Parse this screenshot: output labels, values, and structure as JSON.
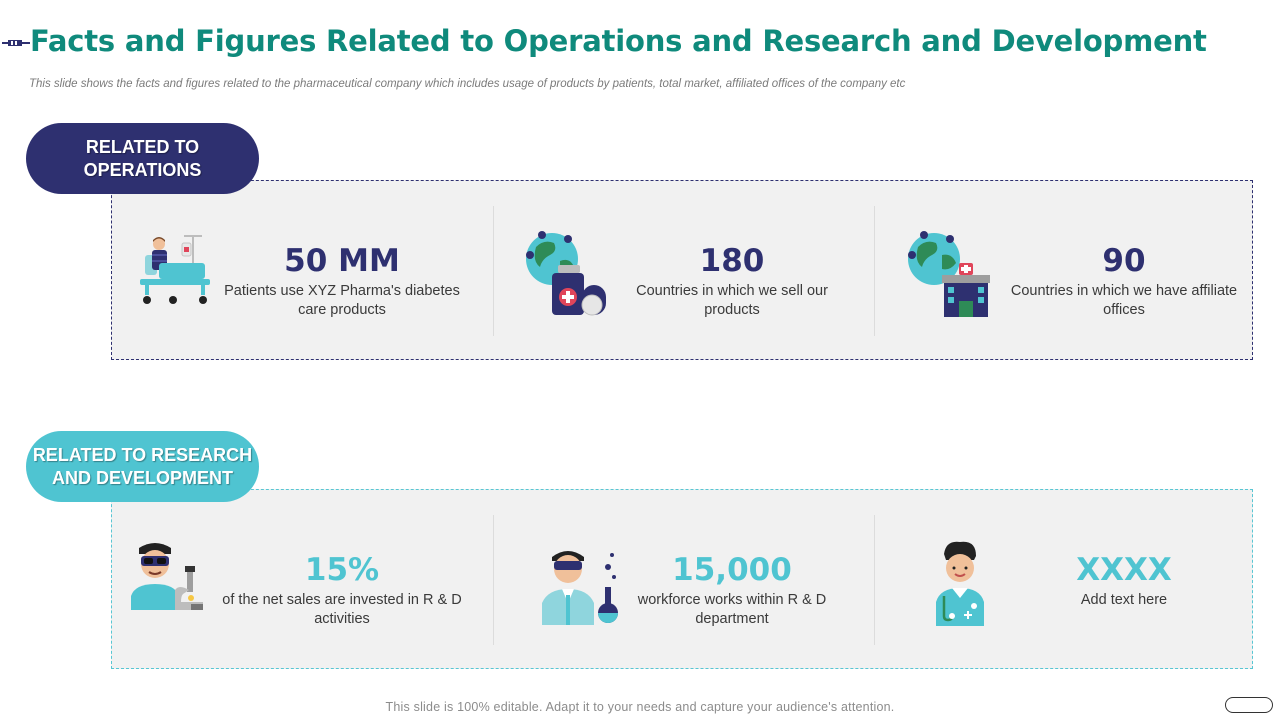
{
  "header": {
    "title": "Facts and Figures Related to Operations and Research and Development",
    "subtitle": "This slide shows the facts and figures related to the pharmaceutical company which includes usage of products by patients, total market, affiliated offices of the company etc"
  },
  "operations": {
    "label": "RELATED TO OPERATIONS",
    "color": "#2e3070",
    "stats": [
      {
        "value": "50 MM",
        "description": "Patients use XYZ Pharma's diabetes care products",
        "icon": "patient-bed-icon"
      },
      {
        "value": "180",
        "description": "Countries in which we sell our products",
        "icon": "globe-medicine-icon"
      },
      {
        "value": "90",
        "description": "Countries in which we have affiliate offices",
        "icon": "globe-hospital-icon"
      }
    ]
  },
  "research": {
    "label": "RELATED TO RESEARCH AND DEVELOPMENT",
    "color": "#4fc4d1",
    "stats": [
      {
        "value": "15%",
        "description": "of the net sales are invested in R & D activities",
        "icon": "researcher-microscope-icon"
      },
      {
        "value": "15,000",
        "description": "workforce works within R & D department",
        "icon": "scientist-flask-icon"
      },
      {
        "value": "XXXX",
        "description": "Add text here",
        "icon": "doctor-stethoscope-icon"
      }
    ]
  },
  "footer": {
    "text": "This slide is 100% editable. Adapt it to your needs and capture your audience's attention."
  }
}
